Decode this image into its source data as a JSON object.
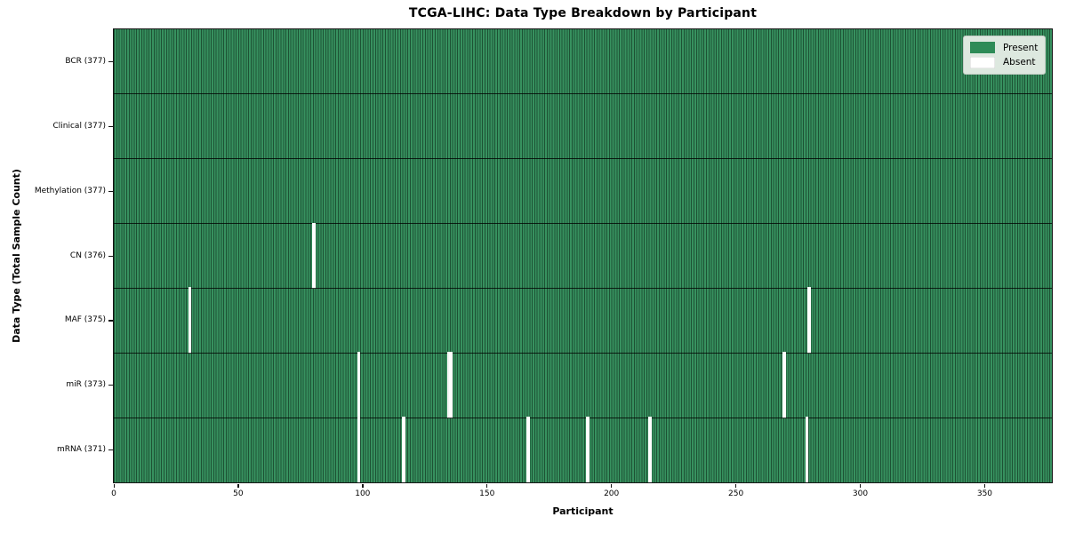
{
  "chart_data": {
    "type": "heatmap",
    "title": "TCGA-LIHC: Data Type Breakdown by Participant",
    "xlabel": "Participant",
    "ylabel": "Data Type (Total Sample Count)",
    "x_range": [
      0,
      377
    ],
    "x_ticks": [
      0,
      50,
      100,
      150,
      200,
      250,
      300,
      350
    ],
    "grid": false,
    "legend_position": "upper right",
    "legend": [
      {
        "label": "Present",
        "color": "#2e8b57"
      },
      {
        "label": "Absent",
        "color": "#ffffff"
      }
    ],
    "colors": {
      "present": "#2e8b57",
      "absent": "#ffffff",
      "cell_fill": "#37915f",
      "cell_edge": "rgba(5,24,13,0.52)",
      "row_separator": "rgba(0,0,0,0.78)"
    },
    "n_participants": 377,
    "rows": [
      {
        "label": "BCR (377)",
        "data_type": "BCR",
        "present_count": 377,
        "absent_participants": []
      },
      {
        "label": "Clinical (377)",
        "data_type": "Clinical",
        "present_count": 377,
        "absent_participants": []
      },
      {
        "label": "Methylation (377)",
        "data_type": "Methylation",
        "present_count": 377,
        "absent_participants": []
      },
      {
        "label": "CN (376)",
        "data_type": "CN",
        "present_count": 376,
        "absent_participants": [
          80
        ]
      },
      {
        "label": "MAF (375)",
        "data_type": "MAF",
        "present_count": 375,
        "absent_participants": [
          30,
          279
        ]
      },
      {
        "label": "miR (373)",
        "data_type": "miR",
        "present_count": 373,
        "absent_participants": [
          98,
          134,
          135,
          269
        ]
      },
      {
        "label": "mRNA (371)",
        "data_type": "mRNA",
        "present_count": 371,
        "absent_participants": [
          98,
          116,
          166,
          190,
          215,
          278
        ]
      }
    ]
  }
}
